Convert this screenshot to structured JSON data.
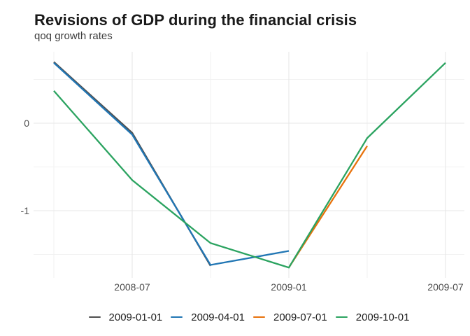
{
  "chart_data": {
    "type": "line",
    "title": "Revisions of GDP during the financial crisis",
    "subtitle": "qoq growth rates",
    "x_categories": [
      "2008-04",
      "2008-07",
      "2008-10",
      "2009-01",
      "2009-04",
      "2009-07"
    ],
    "x_major_ticks": {
      "labels": [
        "2008-07",
        "2009-01",
        "2009-07"
      ],
      "positions": [
        1,
        3,
        5
      ]
    },
    "x_minor_grid_positions": [
      0,
      2,
      4
    ],
    "y_major_ticks": {
      "labels": [
        "0",
        "-1"
      ],
      "values": [
        0,
        -1
      ]
    },
    "y_minor_grid_values": [
      0.5,
      -0.5,
      -1.5
    ],
    "ylim": [
      -1.77,
      0.82
    ],
    "grid": true,
    "legend_position": "bottom",
    "series": [
      {
        "name": "2009-01-01",
        "color": "#4f4f4f",
        "points": [
          {
            "x": "2008-04",
            "y": 0.7
          },
          {
            "x": "2008-07",
            "y": -0.11
          },
          {
            "x": "2008-10",
            "y": -1.63
          }
        ]
      },
      {
        "name": "2009-04-01",
        "color": "#2176b4",
        "points": [
          {
            "x": "2008-04",
            "y": 0.69
          },
          {
            "x": "2008-07",
            "y": -0.13
          },
          {
            "x": "2008-10",
            "y": -1.62
          },
          {
            "x": "2009-01",
            "y": -1.46
          }
        ]
      },
      {
        "name": "2009-07-01",
        "color": "#e8720c",
        "points": [
          {
            "x": "2009-01",
            "y": -1.65
          },
          {
            "x": "2009-04",
            "y": -0.26
          }
        ]
      },
      {
        "name": "2009-10-01",
        "color": "#2ba360",
        "points": [
          {
            "x": "2008-04",
            "y": 0.37
          },
          {
            "x": "2008-07",
            "y": -0.65
          },
          {
            "x": "2008-10",
            "y": -1.37
          },
          {
            "x": "2009-01",
            "y": -1.65
          },
          {
            "x": "2009-04",
            "y": -0.17
          },
          {
            "x": "2009-07",
            "y": 0.69
          }
        ]
      }
    ],
    "style": {
      "major_grid_color": "#e7e7e7",
      "minor_grid_color": "#f2f2f2",
      "axis_text_color": "#4d4d4d",
      "line_width": 2.3
    }
  }
}
